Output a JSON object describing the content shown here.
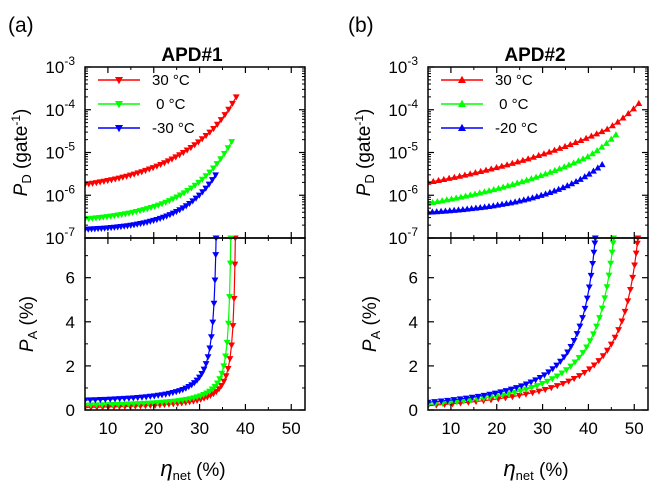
{
  "chart_data": [
    {
      "type": "line",
      "panel_label": "(a)",
      "title": "APD#1",
      "xlabel": {
        "symbol": "η",
        "sub": "net",
        "unit": " (%)"
      },
      "xlim": [
        5,
        53
      ],
      "x_ticks": [
        "10",
        "20",
        "30",
        "40",
        "50"
      ],
      "top": {
        "ylabel": {
          "symbol": "P",
          "sub": "D",
          "unit": " (gate",
          "sup": "-1",
          "close": ")"
        },
        "yscale": "log",
        "ylim": [
          1e-07,
          0.001
        ],
        "y_ticks": [
          {
            "base": "10",
            "exp": "-7"
          },
          {
            "base": "10",
            "exp": "-6"
          },
          {
            "base": "10",
            "exp": "-5"
          },
          {
            "base": "10",
            "exp": "-4"
          },
          {
            "base": "10",
            "exp": "-3"
          }
        ],
        "legend_position": "top-left",
        "marker": "triangle-down",
        "series": [
          {
            "name": "30 °C",
            "color": "#ff0000",
            "x_range": [
              5,
              38
            ],
            "y_range": [
              1.8e-06,
              0.0002
            ],
            "shape": [
              2.3,
              2.5
            ]
          },
          {
            "name": " 0 °C",
            "color": "#00ff00",
            "x_range": [
              5,
              37
            ],
            "y_range": [
              2.8e-07,
              1.8e-05
            ],
            "shape": [
              3.0,
              2.3
            ]
          },
          {
            "name": "-30 °C",
            "color": "#0000ff",
            "x_range": [
              5,
              33.5
            ],
            "y_range": [
              1.6e-07,
              3e-06
            ],
            "shape": [
              3.5,
              2.3
            ]
          }
        ]
      },
      "bottom": {
        "ylabel": {
          "symbol": "P",
          "sub": "A",
          "unit": " (%)"
        },
        "ylim": [
          0,
          7.8
        ],
        "y_ticks": [
          "0",
          "2",
          "4",
          "6"
        ],
        "marker": "triangle-down",
        "series": [
          {
            "name": "30 °C",
            "color": "#ff0000",
            "x_range": [
              5,
              37.8
            ],
            "y_range": [
              0.12,
              7.8
            ],
            "asym": 38.3
          },
          {
            "name": " 0 °C",
            "color": "#00ff00",
            "x_range": [
              5,
              36.8
            ],
            "y_range": [
              0.22,
              7.8
            ],
            "asym": 37.3
          },
          {
            "name": "-30 °C",
            "color": "#0000ff",
            "x_range": [
              5,
              33.6
            ],
            "y_range": [
              0.45,
              7.8
            ],
            "asym": 34.3
          }
        ]
      }
    },
    {
      "type": "line",
      "panel_label": "(b)",
      "title": "APD#2",
      "xlabel": {
        "symbol": "η",
        "sub": "net",
        "unit": " (%)"
      },
      "xlim": [
        5,
        53
      ],
      "x_ticks": [
        "10",
        "20",
        "30",
        "40",
        "50"
      ],
      "top": {
        "ylabel": {
          "symbol": "P",
          "sub": "D",
          "unit": " (gate",
          "sup": "-1",
          "close": ")"
        },
        "yscale": "log",
        "ylim": [
          1e-07,
          0.001
        ],
        "y_ticks": [
          {
            "base": "10",
            "exp": "-7"
          },
          {
            "base": "10",
            "exp": "-6"
          },
          {
            "base": "10",
            "exp": "-5"
          },
          {
            "base": "10",
            "exp": "-4"
          },
          {
            "base": "10",
            "exp": "-3"
          }
        ],
        "legend_position": "top-left",
        "marker": "triangle-up",
        "series": [
          {
            "name": "30 °C",
            "color": "#ff0000",
            "x_range": [
              5,
              51
            ],
            "y_range": [
              2e-06,
              0.00014
            ],
            "shape": [
              1.1,
              1.8
            ]
          },
          {
            "name": " 0 °C",
            "color": "#00ff00",
            "x_range": [
              5,
              46
            ],
            "y_range": [
              6.5e-07,
              2.6e-05
            ],
            "shape": [
              1.2,
              1.8
            ]
          },
          {
            "name": "-20 °C",
            "color": "#0000ff",
            "x_range": [
              5,
              43
            ],
            "y_range": [
              4e-07,
              5.2e-06
            ],
            "shape": [
              2.5,
              1.8
            ]
          }
        ]
      },
      "bottom": {
        "ylabel": {
          "symbol": "P",
          "sub": "A",
          "unit": " (%)"
        },
        "ylim": [
          0,
          7.8
        ],
        "y_ticks": [
          "0",
          "2",
          "4",
          "6"
        ],
        "marker": "triangle-down",
        "series": [
          {
            "name": "30 °C",
            "color": "#ff0000",
            "x_range": [
              5,
              50.8
            ],
            "y_range": [
              0.2,
              7.8
            ],
            "asym": 55.0
          },
          {
            "name": " 0 °C",
            "color": "#00ff00",
            "x_range": [
              5,
              45.5
            ],
            "y_range": [
              0.25,
              7.8
            ],
            "asym": 49.5
          },
          {
            "name": "-20 °C",
            "color": "#0000ff",
            "x_range": [
              5,
              41.5
            ],
            "y_range": [
              0.35,
              7.8
            ],
            "asym": 45.0
          }
        ]
      }
    }
  ]
}
